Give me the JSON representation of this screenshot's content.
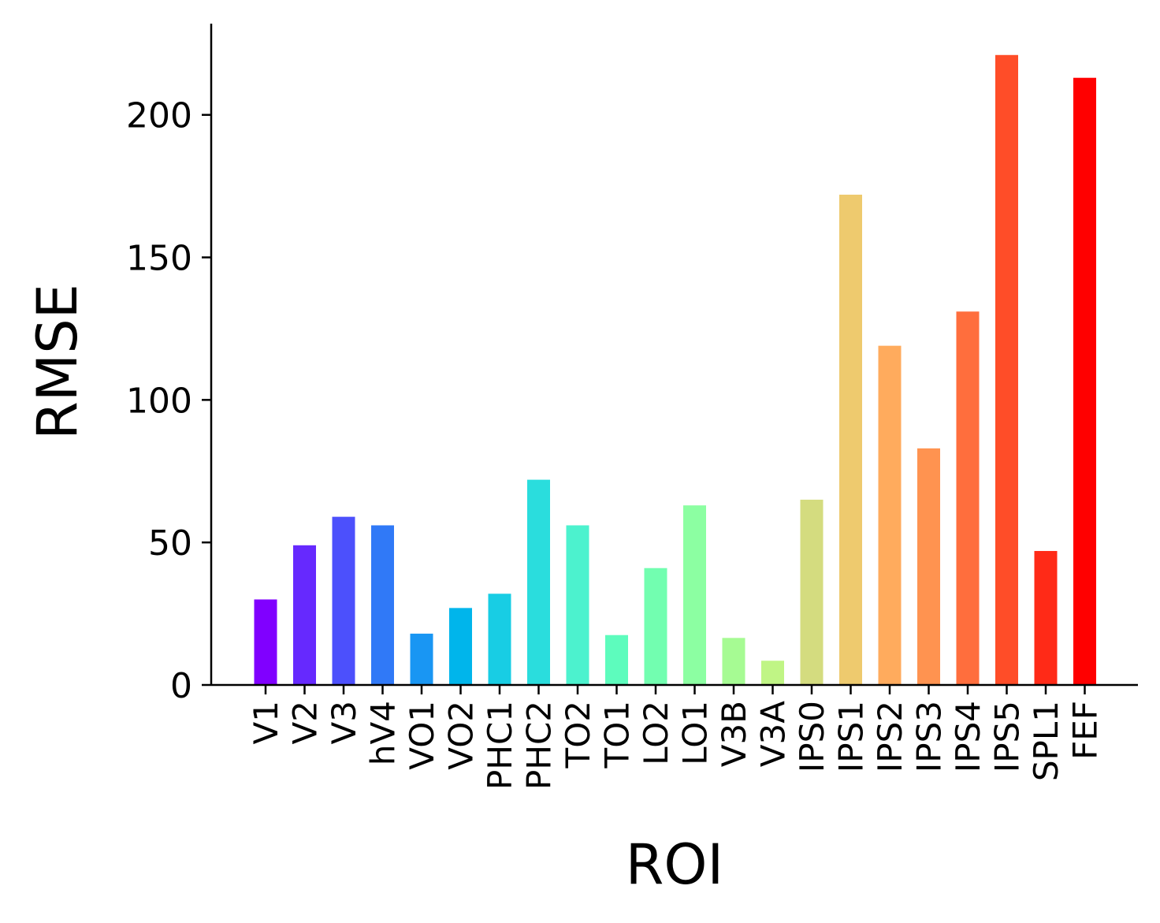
{
  "chart_data": {
    "type": "bar",
    "xlabel": "ROI",
    "ylabel": "RMSE",
    "ylim": [
      0,
      232
    ],
    "yticks": [
      0,
      50,
      100,
      150,
      200
    ],
    "grid": false,
    "categories": [
      "V1",
      "V2",
      "V3",
      "hV4",
      "VO1",
      "VO2",
      "PHC1",
      "PHC2",
      "TO2",
      "TO1",
      "LO2",
      "LO1",
      "V3B",
      "V3A",
      "IPS0",
      "IPS1",
      "IPS2",
      "IPS3",
      "IPS4",
      "IPS5",
      "SPL1",
      "FEF"
    ],
    "values": [
      30,
      49,
      59,
      56,
      18,
      27,
      32,
      72,
      56,
      17.5,
      41,
      63,
      16.5,
      8.5,
      65,
      172,
      119,
      83,
      131,
      221,
      47,
      213
    ],
    "colors": [
      "#8000ff",
      "#6629fe",
      "#4c50fc",
      "#3079f7",
      "#1996f3",
      "#00b5eb",
      "#18cde4",
      "#2adddd",
      "#4cf2ce",
      "#5dfcbd",
      "#72feb0",
      "#8cffa2",
      "#a6fb93",
      "#c0f585",
      "#d4dc7f",
      "#eeca6e",
      "#ffab5d",
      "#ff9350",
      "#ff6e3d",
      "#ff4d28",
      "#ff2a17",
      "#ff0000"
    ]
  }
}
